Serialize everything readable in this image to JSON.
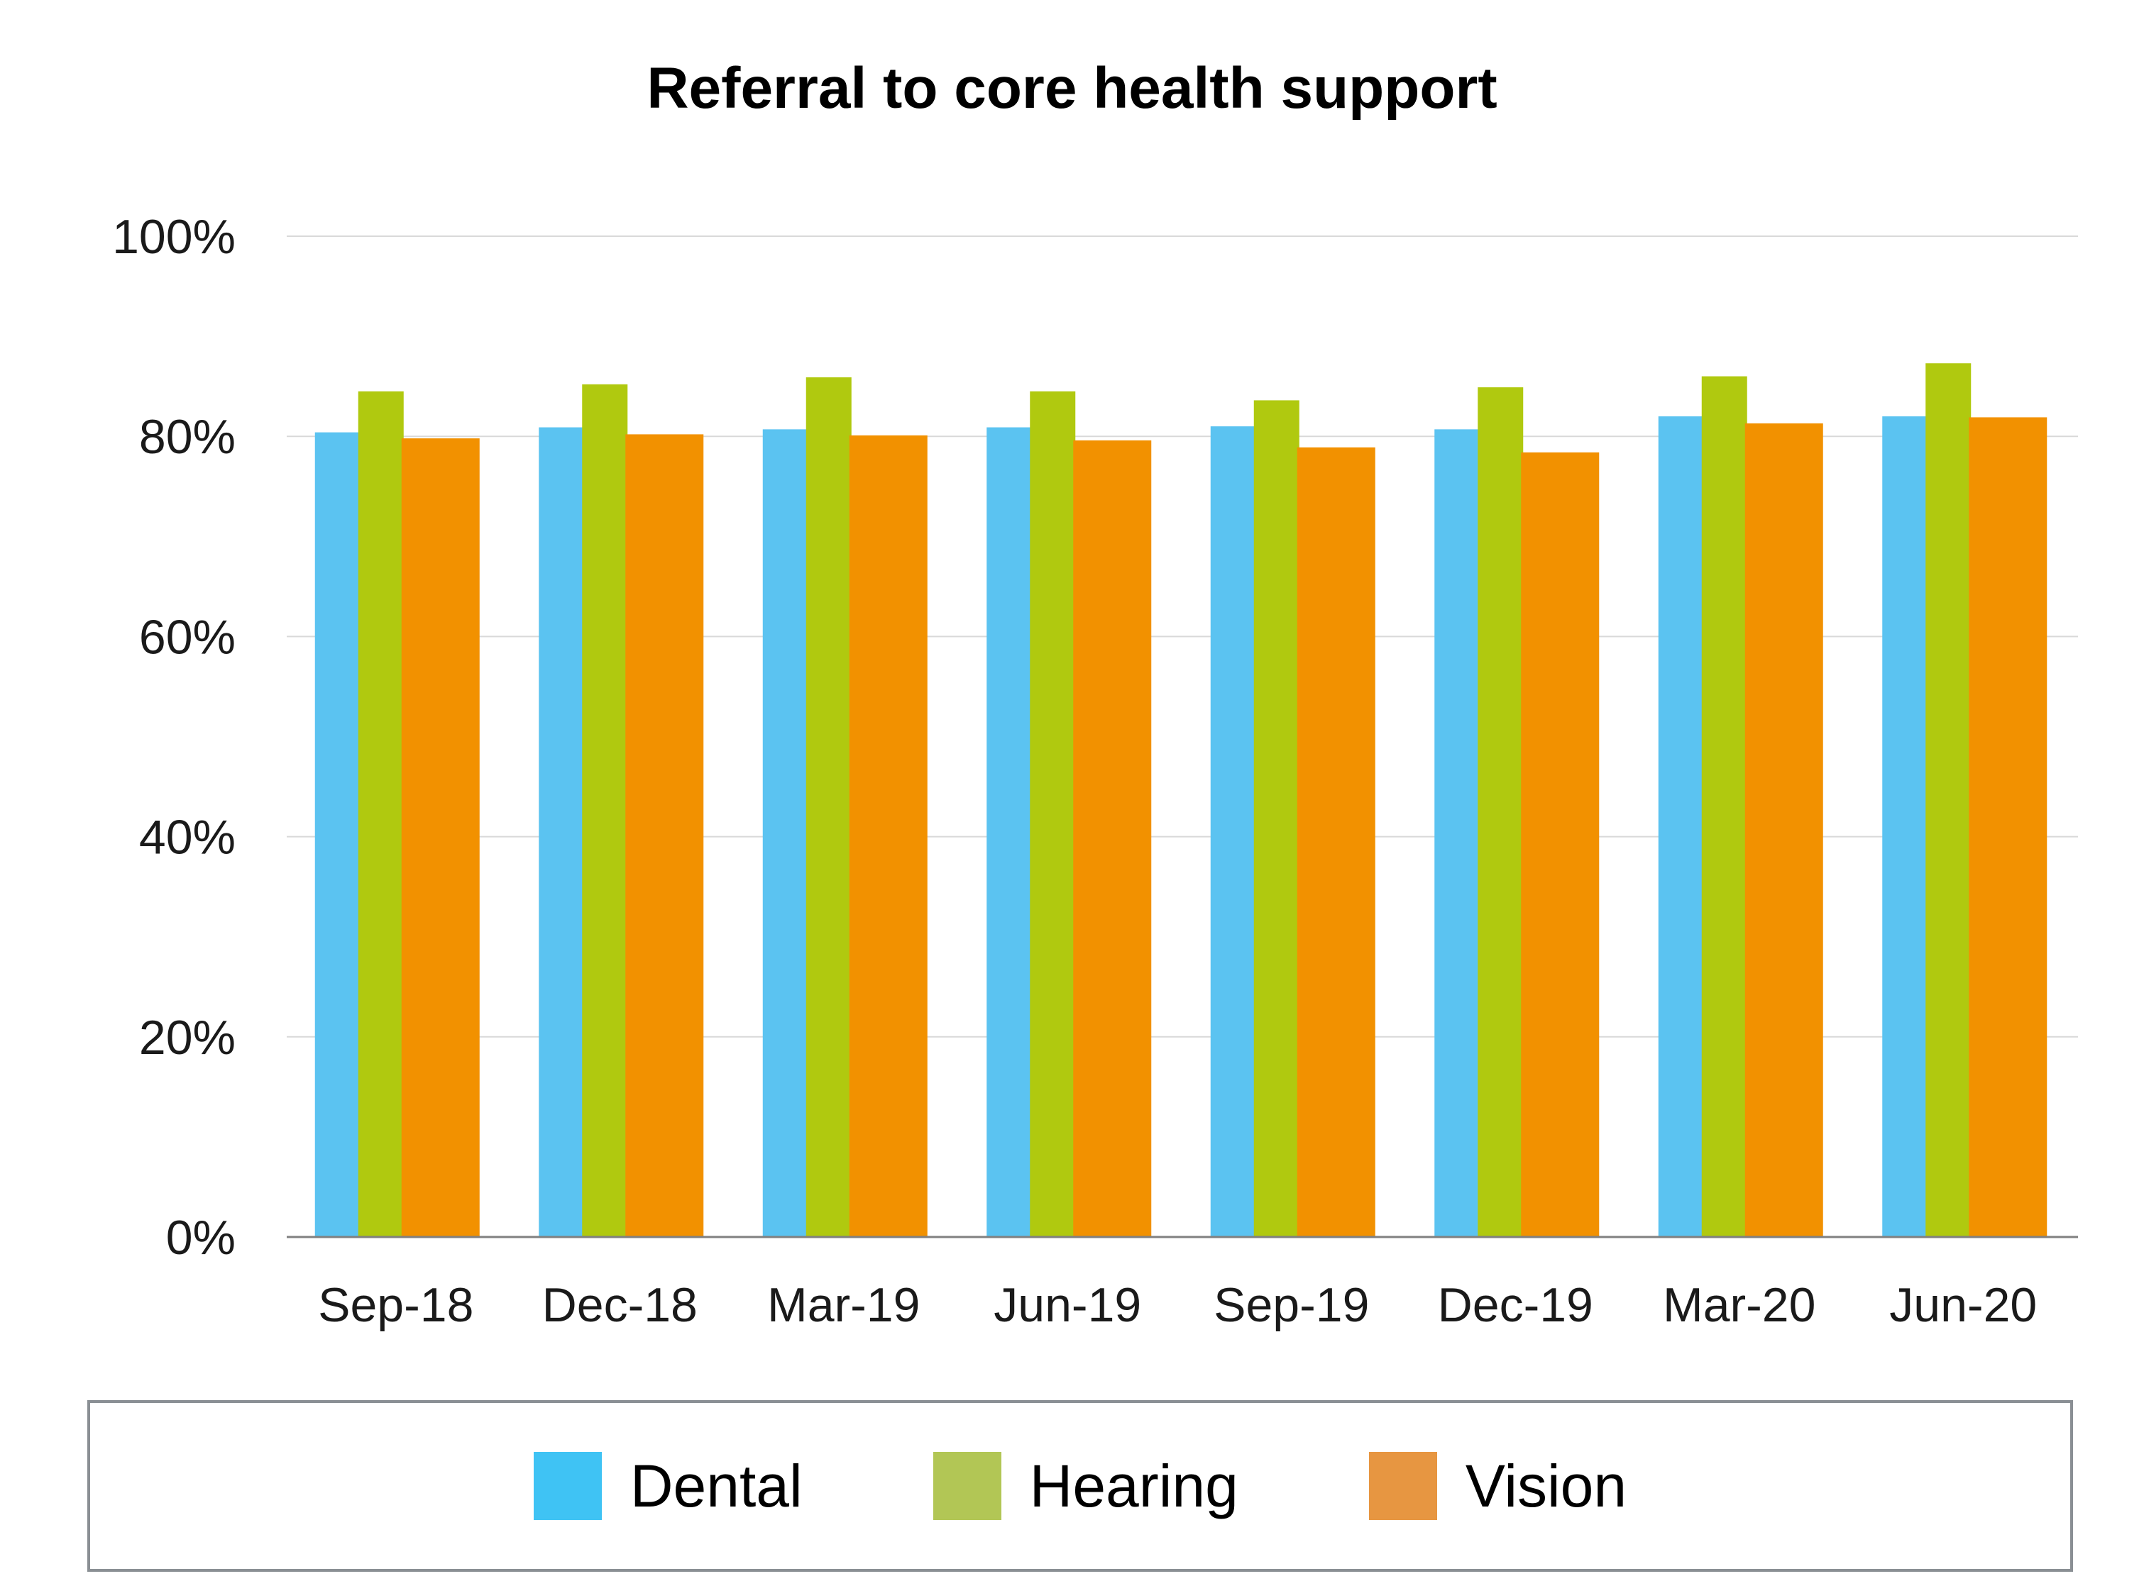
{
  "chart_data": {
    "type": "bar",
    "title": "Referral to core health support",
    "xlabel": "",
    "ylabel": "",
    "ylim": [
      0,
      100
    ],
    "y_ticks": [
      "0%",
      "20%",
      "40%",
      "60%",
      "80%",
      "100%"
    ],
    "y_tick_values": [
      0,
      20,
      40,
      60,
      80,
      100
    ],
    "grid": true,
    "legend_position": "bottom",
    "categories": [
      "Sep-18",
      "Dec-18",
      "Mar-19",
      "Jun-19",
      "Sep-19",
      "Dec-19",
      "Mar-20",
      "Jun-20"
    ],
    "series": [
      {
        "name": "Dental",
        "color": "#5BC3F1",
        "legend_color": "#3FC3F4",
        "values": [
          80.4,
          80.9,
          80.7,
          80.9,
          81.0,
          80.7,
          82.0,
          82.0
        ]
      },
      {
        "name": "Hearing",
        "color": "#B0C90F",
        "legend_color": "#B2C655",
        "values": [
          84.5,
          85.2,
          85.9,
          84.5,
          83.6,
          84.9,
          86.0,
          87.3
        ]
      },
      {
        "name": "Vision",
        "color": "#F29100",
        "legend_color": "#E79641",
        "values": [
          79.8,
          80.2,
          80.1,
          79.6,
          78.9,
          78.4,
          81.3,
          81.9
        ]
      }
    ]
  },
  "legend": {
    "items": [
      {
        "label": "Dental"
      },
      {
        "label": "Hearing"
      },
      {
        "label": "Vision"
      }
    ]
  }
}
